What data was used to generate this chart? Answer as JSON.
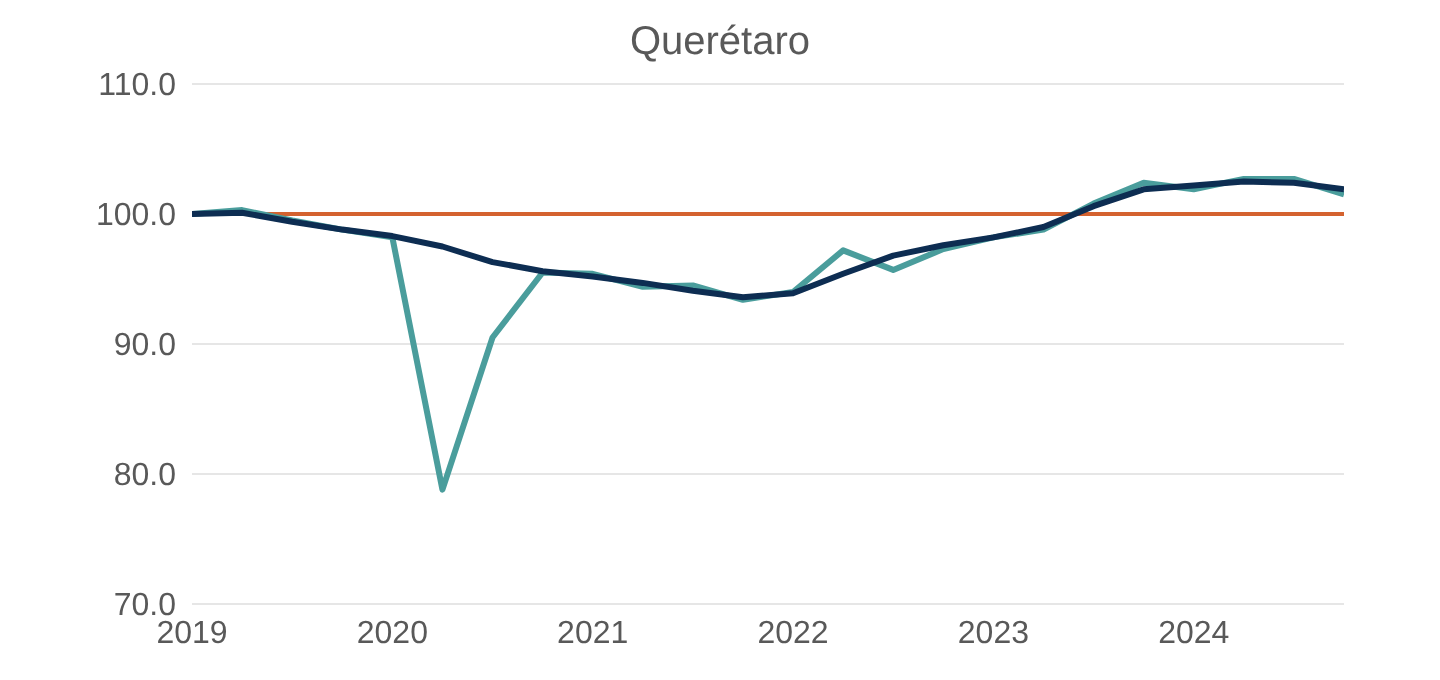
{
  "chart_data": {
    "type": "line",
    "title": "Querétaro",
    "x": [
      2019,
      2019.25,
      2019.5,
      2019.75,
      2020,
      2020.25,
      2020.5,
      2020.75,
      2021,
      2021.25,
      2021.5,
      2021.75,
      2022,
      2022.25,
      2022.5,
      2022.75,
      2023,
      2023.25,
      2023.5,
      2023.75,
      2024,
      2024.25,
      2024.5,
      2024.75
    ],
    "series": [
      {
        "color": "#4a9d9c",
        "values": [
          100.0,
          100.3,
          99.5,
          98.8,
          98.2,
          78.8,
          90.5,
          95.5,
          95.4,
          94.4,
          94.5,
          93.4,
          94.0,
          97.2,
          95.7,
          97.3,
          98.2,
          98.8,
          100.8,
          102.4,
          101.9,
          102.7,
          102.7,
          101.5
        ]
      },
      {
        "color": "#0d2d52",
        "values": [
          100.0,
          100.1,
          99.4,
          98.8,
          98.3,
          97.5,
          96.3,
          95.6,
          95.2,
          94.7,
          94.1,
          93.6,
          93.9,
          95.4,
          96.8,
          97.6,
          98.2,
          99.0,
          100.6,
          101.9,
          102.2,
          102.5,
          102.4,
          101.9
        ]
      }
    ],
    "xlim": [
      2019,
      2024.75
    ],
    "xticks": [
      2019,
      2020,
      2021,
      2022,
      2023,
      2024
    ],
    "ylim": [
      70,
      110
    ],
    "yticks": [
      {
        "value": 70,
        "label": "70.0"
      },
      {
        "value": 80,
        "label": "80.0"
      },
      {
        "value": 90,
        "label": "90.0"
      },
      {
        "value": 100,
        "label": "100.0"
      },
      {
        "value": 110,
        "label": "110.0"
      }
    ],
    "ref_lines": [
      {
        "axis": "y",
        "value": 100,
        "color": "#d4622f"
      }
    ],
    "grid": "y",
    "marker": "none",
    "line_style": "solid"
  }
}
